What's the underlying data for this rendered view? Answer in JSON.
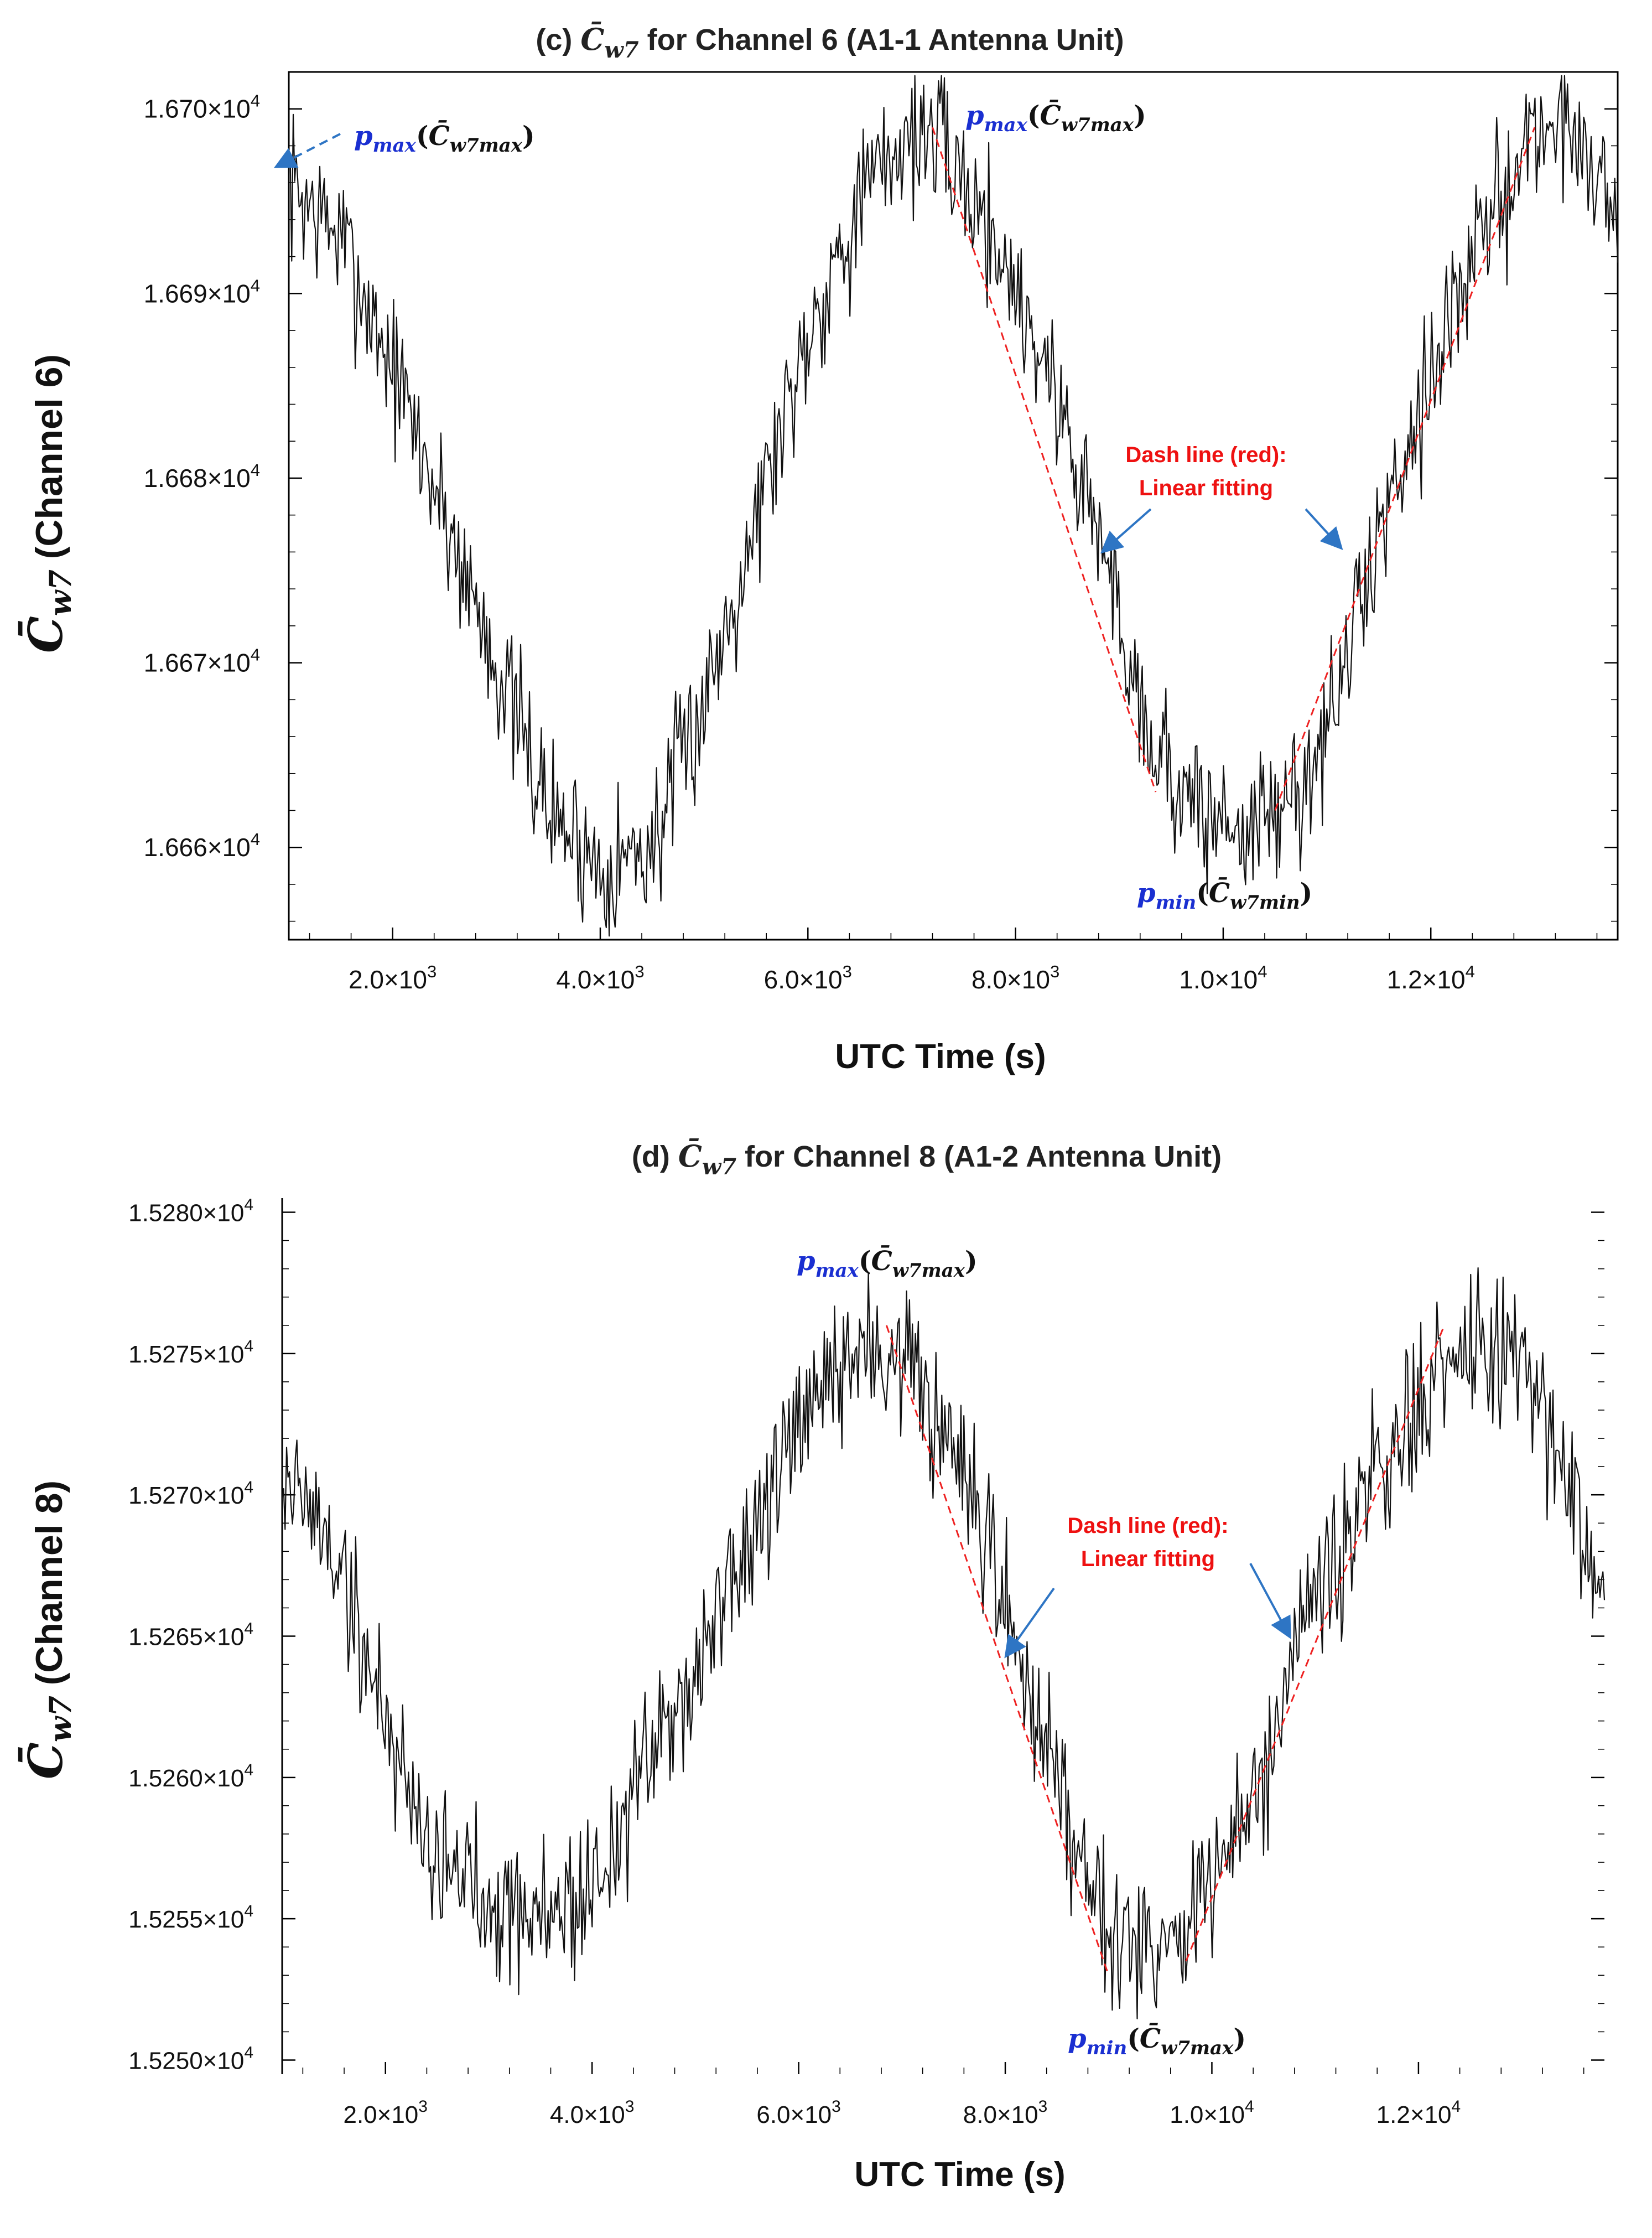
{
  "chart_data": [
    {
      "type": "line",
      "title": "(c) C̄w7 for Channel 6 (A1-1 Antenna Unit)",
      "title_parts": {
        "prefix": "(c) ",
        "symbol": "C̄",
        "sub": "w7",
        "suffix": " for Channel 6 (A1-1 Antenna Unit)"
      },
      "xlabel": "UTC Time (s)",
      "ylabel": {
        "symbol": "C̄",
        "sub": "w7",
        "rest": " (Channel 6)"
      },
      "xlim": [
        1000,
        13800
      ],
      "ylim": [
        16655,
        16702
      ],
      "x_ticks": [
        {
          "value": 2000,
          "mant": "2.0×10",
          "exp": "3"
        },
        {
          "value": 4000,
          "mant": "4.0×10",
          "exp": "3"
        },
        {
          "value": 6000,
          "mant": "6.0×10",
          "exp": "3"
        },
        {
          "value": 8000,
          "mant": "8.0×10",
          "exp": "3"
        },
        {
          "value": 10000,
          "mant": "1.0×10",
          "exp": "4"
        },
        {
          "value": 12000,
          "mant": "1.2×10",
          "exp": "4"
        }
      ],
      "y_ticks": [
        {
          "value": 16660,
          "mant": "1.666×10",
          "exp": "4"
        },
        {
          "value": 16670,
          "mant": "1.667×10",
          "exp": "4"
        },
        {
          "value": 16680,
          "mant": "1.668×10",
          "exp": "4"
        },
        {
          "value": 16690,
          "mant": "1.669×10",
          "exp": "4"
        },
        {
          "value": 16700,
          "mant": "1.670×10",
          "exp": "4"
        }
      ],
      "series": [
        {
          "name": "C̄w7",
          "color": "#000000",
          "anchors": [
            [
              1000,
              16696
            ],
            [
              1500,
              16693
            ],
            [
              2000,
              16686
            ],
            [
              2500,
              16678
            ],
            [
              3000,
              16670
            ],
            [
              3500,
              16662
            ],
            [
              4000,
              16659
            ],
            [
              4500,
              16660
            ],
            [
              5000,
              16668
            ],
            [
              5500,
              16678
            ],
            [
              6000,
              16688
            ],
            [
              6500,
              16695
            ],
            [
              7000,
              16699
            ],
            [
              7300,
              16698
            ],
            [
              7800,
              16693
            ],
            [
              8300,
              16686
            ],
            [
              8800,
              16677
            ],
            [
              9300,
              16666
            ],
            [
              9700,
              16662
            ],
            [
              10200,
              16661
            ],
            [
              10600,
              16662
            ],
            [
              11000,
              16666
            ],
            [
              11500,
              16677
            ],
            [
              12000,
              16686
            ],
            [
              12500,
              16693
            ],
            [
              13000,
              16699
            ],
            [
              13400,
              16699
            ],
            [
              13800,
              16694
            ]
          ],
          "noise": 3.2
        },
        {
          "name": "Linear fitting (upper segment)",
          "color": "#ee2222",
          "dash": true,
          "points": [
            [
              7200,
              16699
            ],
            [
              9350,
              16663
            ]
          ]
        },
        {
          "name": "Linear fitting (lower segment)",
          "color": "#ee2222",
          "dash": true,
          "points": [
            [
              10500,
              16662
            ],
            [
              13000,
              16699
            ]
          ]
        }
      ],
      "annotations": {
        "left_arrow": {
          "p": "p",
          "p_sub": "max",
          "c": "C̄",
          "c_sub": "w7max"
        },
        "top_label": {
          "p": "p",
          "p_sub": "max",
          "c": "C̄",
          "c_sub": "w7max"
        },
        "bottom_label": {
          "p": "p",
          "p_sub": "min",
          "c": "C̄",
          "c_sub": "w7min"
        },
        "fit_note": {
          "line1": "Dash line (red):",
          "line2": "Linear fitting"
        }
      },
      "colors": {
        "symbol_blue": "#1a2fd1",
        "arrow_blue": "#2e75c4",
        "fit_red": "#ee2222"
      }
    },
    {
      "type": "line",
      "title": "(d) C̄w7 for Channel 8 (A1-2 Antenna Unit)",
      "title_parts": {
        "prefix": "(d) ",
        "symbol": "C̄",
        "sub": "w7",
        "suffix": " for Channel 8 (A1-2 Antenna Unit)"
      },
      "xlabel": "UTC Time (s)",
      "ylabel": {
        "symbol": "C̄",
        "sub": "w7",
        "rest": " (Channel 8)"
      },
      "xlim": [
        1000,
        13800
      ],
      "ylim": [
        15249.5,
        15280.5
      ],
      "x_ticks": [
        {
          "value": 2000,
          "mant": "2.0×10",
          "exp": "3"
        },
        {
          "value": 4000,
          "mant": "4.0×10",
          "exp": "3"
        },
        {
          "value": 6000,
          "mant": "6.0×10",
          "exp": "3"
        },
        {
          "value": 8000,
          "mant": "8.0×10",
          "exp": "3"
        },
        {
          "value": 10000,
          "mant": "1.0×10",
          "exp": "4"
        },
        {
          "value": 12000,
          "mant": "1.2×10",
          "exp": "4"
        }
      ],
      "y_ticks": [
        {
          "value": 15250,
          "mant": "1.5250×10",
          "exp": "4"
        },
        {
          "value": 15255,
          "mant": "1.5255×10",
          "exp": "4"
        },
        {
          "value": 15260,
          "mant": "1.5260×10",
          "exp": "4"
        },
        {
          "value": 15265,
          "mant": "1.5265×10",
          "exp": "4"
        },
        {
          "value": 15270,
          "mant": "1.5270×10",
          "exp": "4"
        },
        {
          "value": 15275,
          "mant": "1.5275×10",
          "exp": "4"
        },
        {
          "value": 15280,
          "mant": "1.5280×10",
          "exp": "4"
        }
      ],
      "series": [
        {
          "name": "C̄w7",
          "color": "#000000",
          "anchors": [
            [
              1000,
              15271
            ],
            [
              1500,
              15268
            ],
            [
              2000,
              15262
            ],
            [
              2500,
              15257
            ],
            [
              3000,
              15256
            ],
            [
              3500,
              15255
            ],
            [
              4000,
              15256
            ],
            [
              4500,
              15260
            ],
            [
              5000,
              15264
            ],
            [
              5500,
              15268
            ],
            [
              6000,
              15272
            ],
            [
              6500,
              15275
            ],
            [
              7000,
              15275
            ],
            [
              7500,
              15271
            ],
            [
              8000,
              15266
            ],
            [
              8500,
              15260
            ],
            [
              9000,
              15255
            ],
            [
              9500,
              15254
            ],
            [
              10000,
              15256
            ],
            [
              10500,
              15260
            ],
            [
              11000,
              15266
            ],
            [
              11500,
              15270
            ],
            [
              12000,
              15273
            ],
            [
              12500,
              15275
            ],
            [
              13000,
              15275
            ],
            [
              13500,
              15270
            ],
            [
              13800,
              15266
            ]
          ],
          "noise": 2.2
        },
        {
          "name": "Linear fitting (falling)",
          "color": "#ee2222",
          "dash": true,
          "points": [
            [
              6850,
              15276
            ],
            [
              9000,
              15253
            ]
          ]
        },
        {
          "name": "Linear fitting (rising)",
          "color": "#ee2222",
          "dash": true,
          "points": [
            [
              9750,
              15253.5
            ],
            [
              12250,
              15276
            ]
          ]
        }
      ],
      "annotations": {
        "top_label": {
          "p": "p",
          "p_sub": "max",
          "c": "C̄",
          "c_sub": "w7max"
        },
        "bottom_label": {
          "p": "p",
          "p_sub": "min",
          "c": "C̄",
          "c_sub": "w7max"
        },
        "fit_note": {
          "line1": "Dash line (red):",
          "line2": "Linear fitting"
        }
      },
      "colors": {
        "symbol_blue": "#1a2fd1",
        "arrow_blue": "#2e75c4",
        "fit_red": "#ee2222"
      }
    }
  ]
}
